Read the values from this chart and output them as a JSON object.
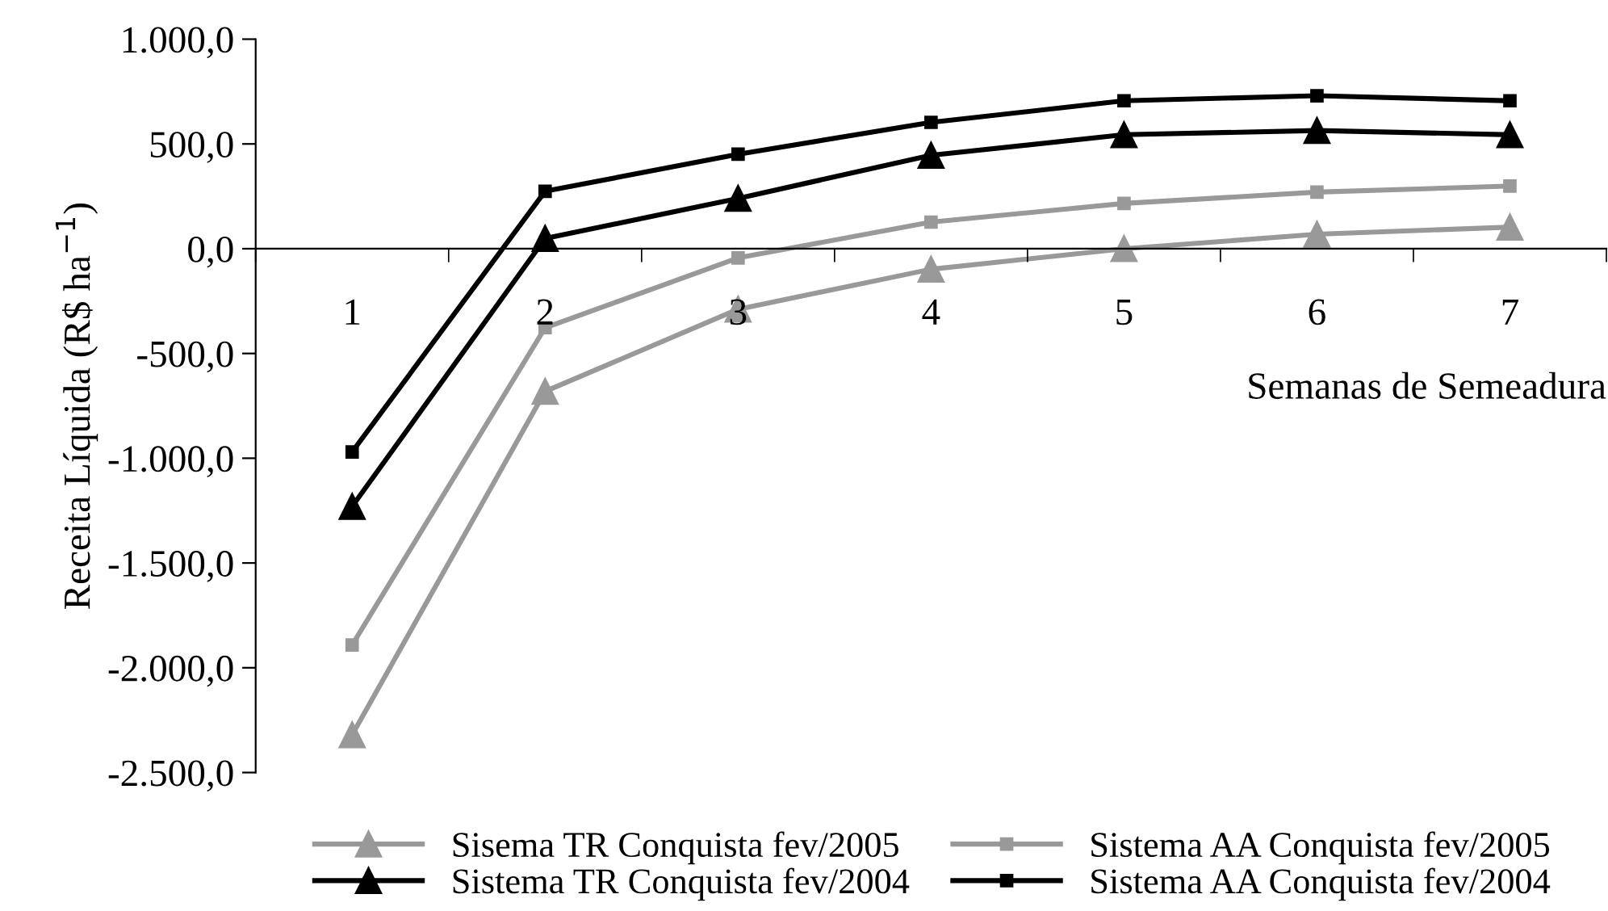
{
  "chart_data": {
    "type": "line",
    "ylabel": "Receita Líquida (R$ ha$^{−1}$)",
    "xlabel": "Semanas de Semeadura",
    "categories": [
      "1",
      "2",
      "3",
      "4",
      "5",
      "6",
      "7"
    ],
    "series": [
      {
        "name": "Sisema TR Conquista fev/2005",
        "color": "#999999",
        "marker": "triangle",
        "values": [
          -2320,
          -681,
          -289,
          -98,
          0,
          69,
          103
        ]
      },
      {
        "name": "Sistema AA Conquista fev/2005",
        "color": "#999999",
        "marker": "square",
        "values": [
          -1891,
          -377,
          -44,
          127,
          216,
          270,
          299
        ]
      },
      {
        "name": "Sistema TR Conquista fev/2004",
        "color": "#000000",
        "marker": "triangle",
        "values": [
          -1230,
          49,
          240,
          446,
          544,
          564,
          544
        ]
      },
      {
        "name": "Sistema AA Conquista fev/2004",
        "color": "#000000",
        "marker": "square",
        "values": [
          -970,
          274,
          451,
          603,
          706,
          730,
          706
        ]
      }
    ],
    "ylim": [
      -2500,
      1000
    ],
    "yticks": [
      {
        "value": -2500,
        "label": "-2.500,0"
      },
      {
        "value": -2000,
        "label": "-2.000,0"
      },
      {
        "value": -1500,
        "label": "-1.500,0"
      },
      {
        "value": -1000,
        "label": "-1.000,0"
      },
      {
        "value": -500,
        "label": "-500,0"
      },
      {
        "value": 0,
        "label": "0,0"
      },
      {
        "value": 500,
        "label": "500,0"
      },
      {
        "value": 1000,
        "label": "1.000,0"
      }
    ],
    "grid": false,
    "legend": "bottom",
    "line_style": "solid"
  }
}
